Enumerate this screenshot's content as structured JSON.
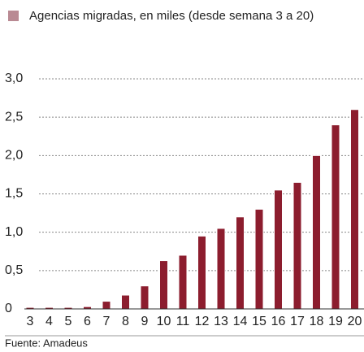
{
  "chart_data": {
    "type": "bar",
    "title": "Agencias migradas, en miles (desde semana 3 a 20)",
    "categories": [
      "3",
      "4",
      "5",
      "6",
      "7",
      "8",
      "9",
      "10",
      "11",
      "12",
      "13",
      "14",
      "15",
      "16",
      "17",
      "18",
      "19",
      "20"
    ],
    "values": [
      0.02,
      0.02,
      0.02,
      0.03,
      0.1,
      0.18,
      0.3,
      0.63,
      0.7,
      0.95,
      1.05,
      1.2,
      1.3,
      1.55,
      1.65,
      2.0,
      2.4,
      2.6
    ],
    "color": "#8c1d2e",
    "ylim": [
      0,
      3
    ],
    "yticks": [
      0,
      {
        "value": 0.5,
        "label": "0,5"
      },
      {
        "value": 1,
        "label": "1,0"
      },
      {
        "value": 1.5,
        "label": "1,5"
      },
      {
        "value": 2,
        "label": "2,0"
      },
      {
        "value": 2.5,
        "label": "2,5"
      },
      {
        "value": 3,
        "label": "3,0"
      }
    ],
    "grid": true,
    "source": "Fuente: Amadeus"
  }
}
